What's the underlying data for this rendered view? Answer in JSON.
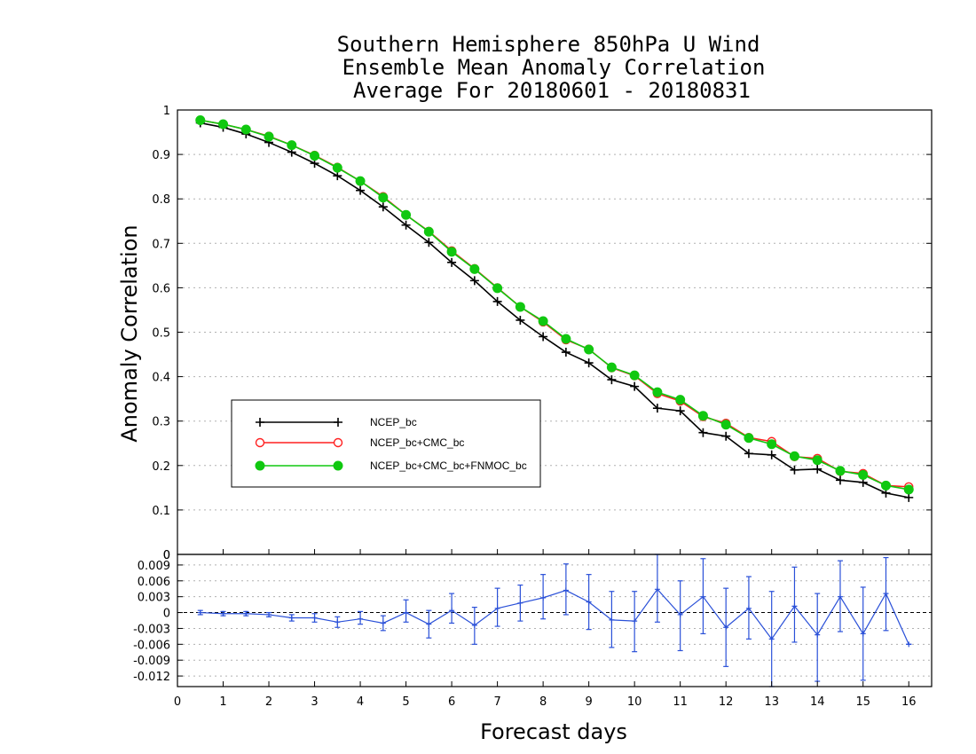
{
  "chart_data": [
    {
      "type": "line",
      "title": [
        "Southern Hemisphere 850hPa U Wind",
        "Ensemble Mean Anomaly Correlation",
        "Average For 20180601 - 20180831"
      ],
      "xlabel": "Forecast days",
      "ylabel": "Anomaly Correlation",
      "xlim": [
        0,
        16.5
      ],
      "ylim": [
        0,
        1
      ],
      "x_ticks": [
        "0",
        "1",
        "2",
        "3",
        "4",
        "5",
        "6",
        "7",
        "8",
        "9",
        "10",
        "11",
        "12",
        "13",
        "14",
        "15",
        "16"
      ],
      "y_ticks": [
        "0",
        "0.1",
        "0.2",
        "0.3",
        "0.4",
        "0.5",
        "0.6",
        "0.7",
        "0.8",
        "0.9",
        "1"
      ],
      "grid": "horizontal dotted",
      "legend": "lower-left",
      "colors": {
        "black": "#000000",
        "red": "#ff2020",
        "green": "#10c810"
      },
      "x": [
        0.5,
        1,
        1.5,
        2,
        2.5,
        3,
        3.5,
        4,
        4.5,
        5,
        5.5,
        6,
        6.5,
        7,
        7.5,
        8,
        8.5,
        9,
        9.5,
        10,
        10.5,
        11,
        11.5,
        12,
        12.5,
        13,
        13.5,
        14,
        14.5,
        15,
        15.5,
        16
      ],
      "series": [
        {
          "name": "NCEP_bc",
          "color": "#000000",
          "marker": "plus",
          "values": [
            0.971,
            0.961,
            0.946,
            0.927,
            0.905,
            0.88,
            0.852,
            0.819,
            0.782,
            0.741,
            0.702,
            0.657,
            0.616,
            0.569,
            0.527,
            0.49,
            0.455,
            0.431,
            0.393,
            0.378,
            0.329,
            0.323,
            0.274,
            0.266,
            0.227,
            0.224,
            0.19,
            0.192,
            0.167,
            0.162,
            0.138,
            0.128
          ]
        },
        {
          "name": "NCEP_bc+CMC_bc",
          "color": "#ff2020",
          "marker": "open-circle",
          "values": [
            0.977,
            0.968,
            0.956,
            0.941,
            0.921,
            0.898,
            0.871,
            0.84,
            0.805,
            0.764,
            0.727,
            0.683,
            0.643,
            0.6,
            0.557,
            0.523,
            0.483,
            0.462,
            0.42,
            0.402,
            0.362,
            0.345,
            0.31,
            0.295,
            0.263,
            0.254,
            0.22,
            0.216,
            0.187,
            0.182,
            0.155,
            0.152
          ]
        },
        {
          "name": "NCEP_bc+CMC_bc+FNMOC_bc",
          "color": "#10c810",
          "marker": "filled-circle",
          "values": [
            0.977,
            0.968,
            0.956,
            0.94,
            0.921,
            0.897,
            0.87,
            0.84,
            0.803,
            0.764,
            0.726,
            0.681,
            0.642,
            0.599,
            0.557,
            0.525,
            0.485,
            0.461,
            0.421,
            0.403,
            0.365,
            0.348,
            0.312,
            0.292,
            0.262,
            0.248,
            0.221,
            0.212,
            0.188,
            0.179,
            0.155,
            0.146
          ]
        }
      ]
    },
    {
      "type": "line",
      "xlabel": "Forecast days",
      "ylim": [
        -0.014,
        0.011
      ],
      "y_ticks": [
        "0.009",
        "0.006",
        "0.003",
        "0",
        "-0.003",
        "-0.006",
        "-0.009",
        "-0.012"
      ],
      "grid": "horizontal dotted",
      "x": [
        0.5,
        1,
        1.5,
        2,
        2.5,
        3,
        3.5,
        4,
        4.5,
        5,
        5.5,
        6,
        6.5,
        7,
        7.5,
        8,
        8.5,
        9,
        9.5,
        10,
        10.5,
        11,
        11.5,
        12,
        12.5,
        13,
        13.5,
        14,
        14.5,
        15,
        15.5,
        16
      ],
      "series": [
        {
          "color": "#2a50d8",
          "errorbars": true,
          "values": [
            0.0,
            -0.0002,
            -0.0002,
            -0.0004,
            -0.001,
            -0.001,
            -0.0018,
            -0.0012,
            -0.002,
            0.0,
            -0.0022,
            0.0004,
            -0.0024,
            0.0008,
            0.0018,
            0.0028,
            0.0042,
            0.002,
            -0.0014,
            -0.0016,
            0.0044,
            -0.0004,
            0.003,
            -0.0028,
            0.0008,
            -0.005,
            0.0012,
            -0.0042,
            0.003,
            -0.004,
            0.0036,
            -0.006
          ],
          "err_low": [
            -0.0004,
            -0.0006,
            -0.0006,
            -0.0008,
            -0.0016,
            -0.0018,
            -0.0028,
            -0.0022,
            -0.0034,
            -0.0018,
            -0.0048,
            -0.002,
            -0.006,
            -0.0026,
            -0.0016,
            -0.0012,
            -0.0004,
            -0.0032,
            -0.0066,
            -0.0074,
            -0.0018,
            -0.0072,
            -0.004,
            -0.0102,
            -0.005,
            -0.014,
            -0.0056,
            -0.013,
            -0.0036,
            -0.0128,
            -0.0034,
            -0.006
          ],
          "err_high": [
            0.0004,
            0.0002,
            0.0002,
            0.0,
            -0.0004,
            -0.0002,
            -0.0008,
            0.0002,
            -0.0006,
            0.0024,
            0.0004,
            0.0036,
            0.001,
            0.0046,
            0.0052,
            0.0072,
            0.0092,
            0.0072,
            0.004,
            0.004,
            0.011,
            0.006,
            0.0102,
            0.0046,
            0.0068,
            0.004,
            0.0086,
            0.0036,
            0.0098,
            0.0048,
            0.0104,
            -0.006
          ]
        }
      ]
    }
  ]
}
